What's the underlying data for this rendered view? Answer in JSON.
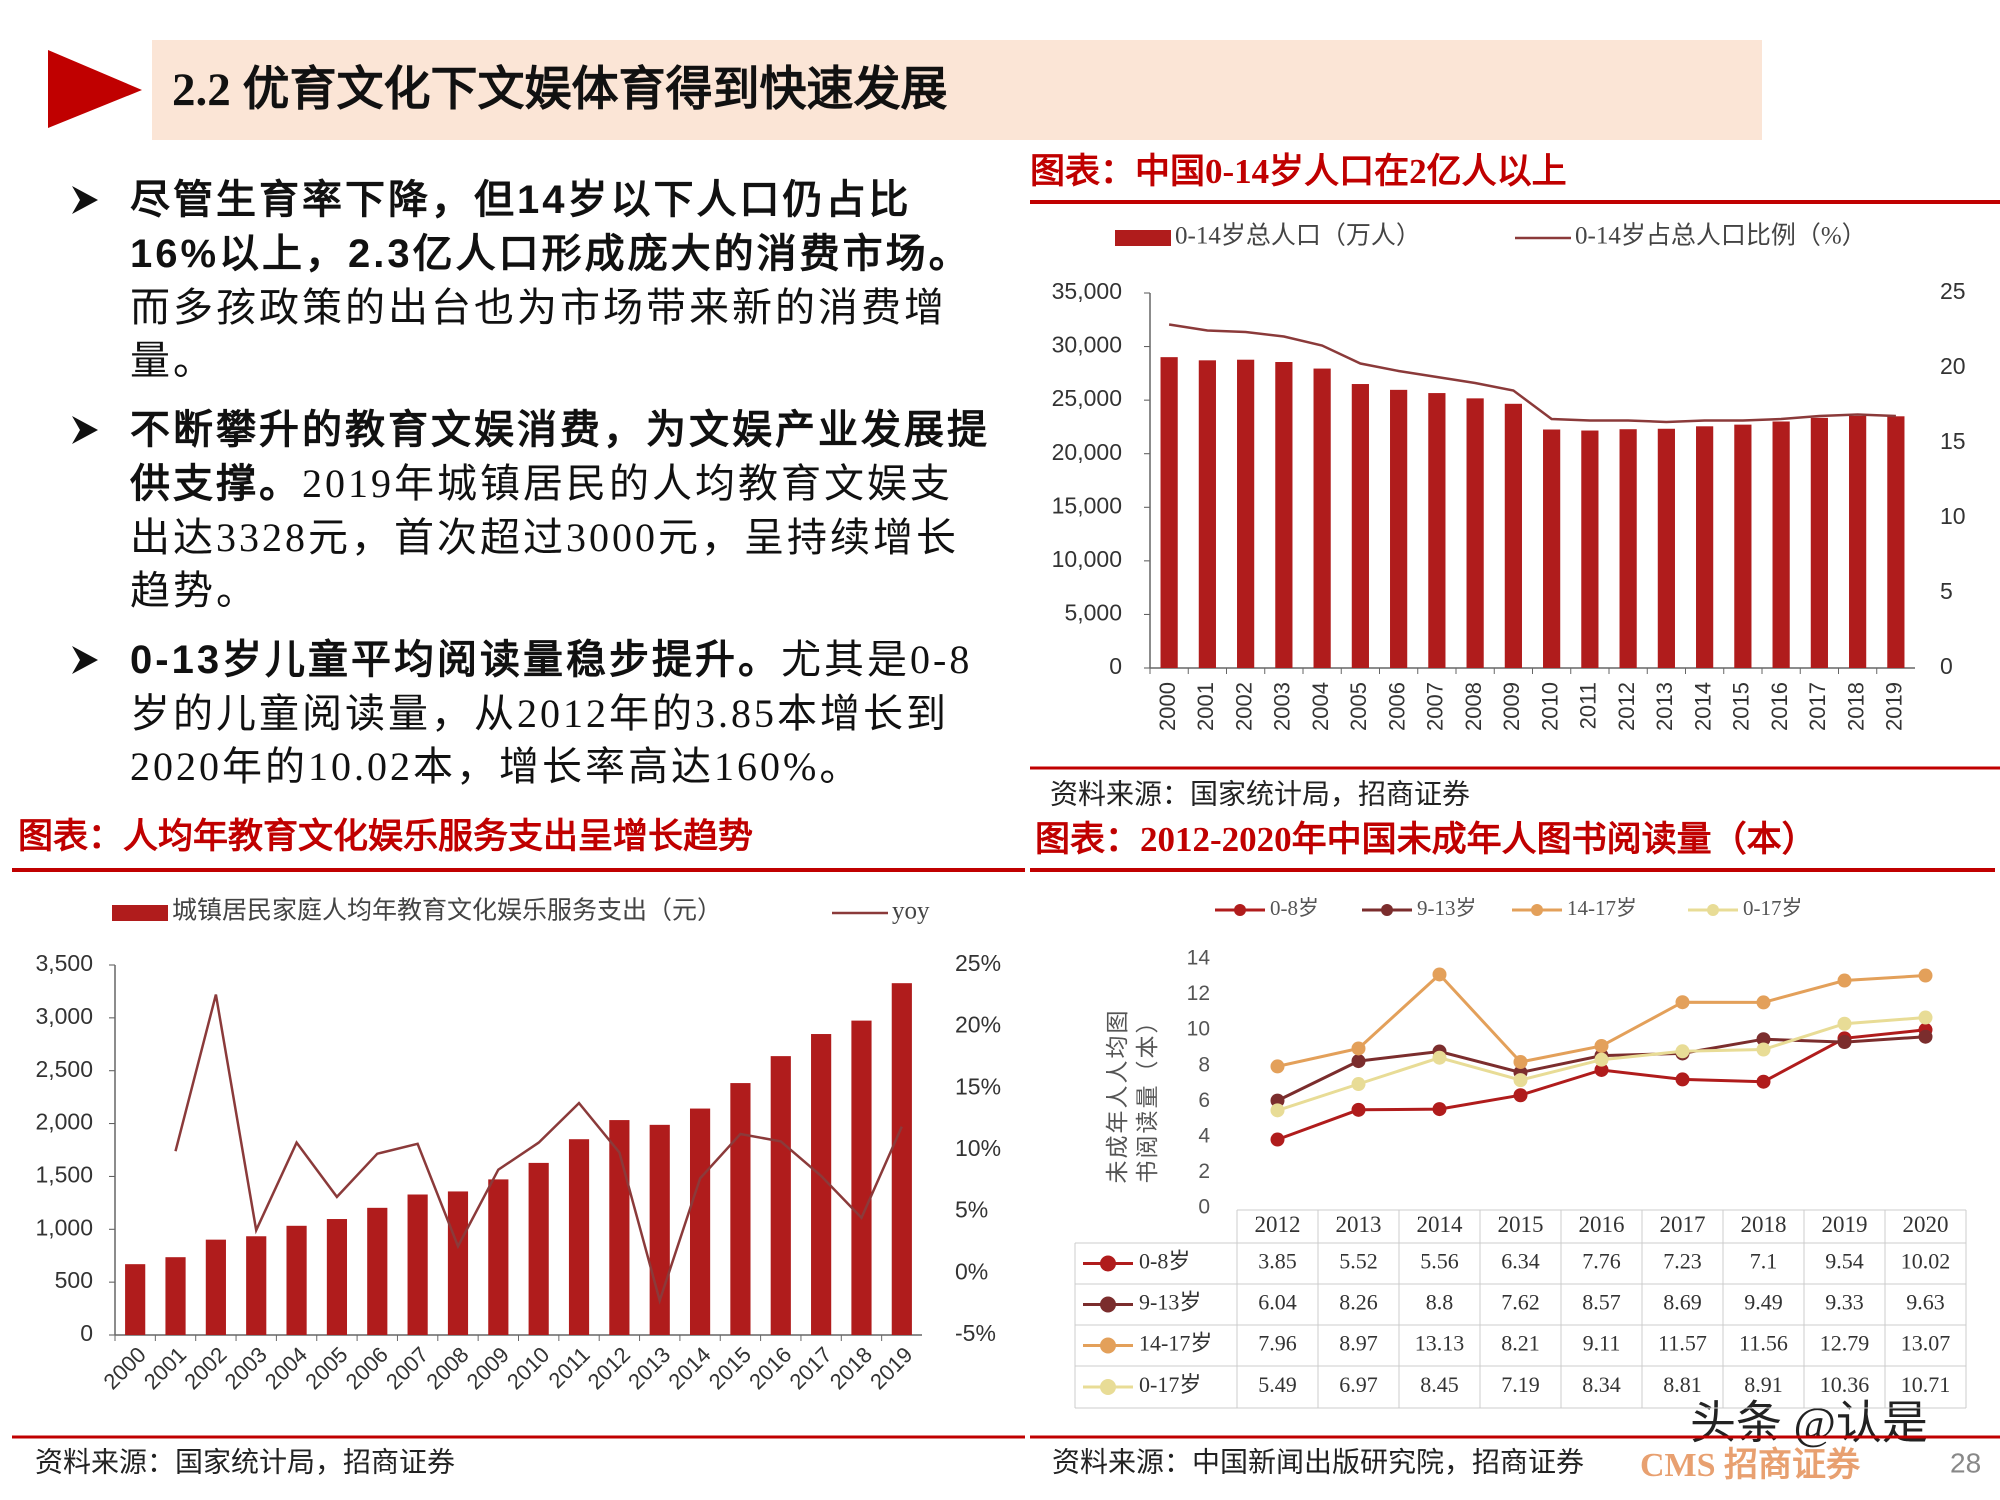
{
  "header": {
    "title": "2.2 优育文化下文娱体育得到快速发展"
  },
  "bullets": [
    {
      "bold": "尽管生育率下降，但14岁以下人口仍占比16%以上，2.3亿人口形成庞大的消费市场。",
      "text": "而多孩政策的出台也为市场带来新的消费增量。"
    },
    {
      "bold": "不断攀升的教育文娱消费，为文娱产业发展提供支撑。",
      "text": "2019年城镇居民的人均教育文娱支出达3328元，首次超过3000元，呈持续增长趋势。"
    },
    {
      "bold": "0-13岁儿童平均阅读量稳步提升。",
      "text": "尤其是0-8岁的儿童阅读量，从2012年的3.85本增长到2020年的10.02本，增长率高达160%。"
    }
  ],
  "chart_data": [
    {
      "type": "combo",
      "title": "图表：中国0-14岁人口在2亿人以上",
      "source": "资料来源：国家统计局，招商证券",
      "categories": [
        "2000",
        "2001",
        "2002",
        "2003",
        "2004",
        "2005",
        "2006",
        "2007",
        "2008",
        "2009",
        "2010",
        "2011",
        "2012",
        "2013",
        "2014",
        "2015",
        "2016",
        "2017",
        "2018",
        "2019"
      ],
      "series": [
        {
          "name": "0-14岁总人口（万人）",
          "color": "#b01c1c",
          "kind": "bar",
          "values": [
            29012,
            28716,
            28774,
            28559,
            27947,
            26504,
            25961,
            25660,
            25166,
            24659,
            22259,
            22164,
            22287,
            22329,
            22558,
            22715,
            23008,
            23348,
            23523,
            23492
          ]
        },
        {
          "name": "0-14岁占总人口比例（%）",
          "color": "#8b3a3a",
          "kind": "line",
          "axis": "y2",
          "values": [
            22.9,
            22.5,
            22.4,
            22.1,
            21.5,
            20.3,
            19.8,
            19.4,
            19.0,
            18.5,
            16.6,
            16.5,
            16.5,
            16.4,
            16.5,
            16.5,
            16.6,
            16.8,
            16.9,
            16.8
          ]
        }
      ],
      "ylim": [
        0,
        35000
      ],
      "yticks": [
        0,
        {
          "value": 5000,
          "label": "5,000"
        },
        {
          "value": 10000,
          "label": "10,000"
        },
        {
          "value": 15000,
          "label": "15,000"
        },
        {
          "value": 20000,
          "label": "20,000"
        },
        {
          "value": 25000,
          "label": "25,000"
        },
        {
          "value": 30000,
          "label": "30,000"
        },
        {
          "value": 35000,
          "label": "35,000"
        }
      ],
      "y2lim": [
        0,
        25
      ],
      "y2ticks": [
        0,
        5,
        10,
        15,
        20,
        25
      ]
    },
    {
      "type": "combo",
      "title": "图表：人均年教育文化娱乐服务支出呈增长趋势",
      "source": "资料来源：国家统计局，招商证券",
      "categories": [
        "2000",
        "2001",
        "2002",
        "2003",
        "2004",
        "2005",
        "2006",
        "2007",
        "2008",
        "2009",
        "2010",
        "2011",
        "2012",
        "2013",
        "2014",
        "2015",
        "2016",
        "2017",
        "2018",
        "2019"
      ],
      "series": [
        {
          "name": "城镇居民家庭人均年教育文化娱乐服务支出（元）",
          "color": "#b01c1c",
          "kind": "bar",
          "values": [
            670,
            736,
            902,
            934,
            1033,
            1097,
            1203,
            1329,
            1358,
            1472,
            1628,
            1852,
            2033,
            1988,
            2142,
            2383,
            2638,
            2847,
            2974,
            3328
          ]
        },
        {
          "name": "yoy",
          "color": "#8b3a3a",
          "kind": "line",
          "axis": "y2",
          "values": [
            null,
            9.9,
            22.6,
            3.5,
            10.6,
            6.2,
            9.7,
            10.5,
            2.2,
            8.4,
            10.6,
            13.8,
            9.8,
            -2.2,
            7.7,
            11.3,
            10.7,
            7.9,
            4.5,
            11.9
          ]
        }
      ],
      "ylim": [
        0,
        3500
      ],
      "yticks": [
        0,
        500,
        {
          "value": 1000,
          "label": "1,000"
        },
        {
          "value": 1500,
          "label": "1,500"
        },
        {
          "value": 2000,
          "label": "2,000"
        },
        {
          "value": 2500,
          "label": "2,500"
        },
        {
          "value": 3000,
          "label": "3,000"
        },
        {
          "value": 3500,
          "label": "3,500"
        }
      ],
      "y2lim": [
        -5,
        25
      ],
      "y2ticks": [
        {
          "value": -5,
          "label": "-5%"
        },
        {
          "value": 0,
          "label": "0%"
        },
        {
          "value": 5,
          "label": "5%"
        },
        {
          "value": 10,
          "label": "10%"
        },
        {
          "value": 15,
          "label": "15%"
        },
        {
          "value": 20,
          "label": "20%"
        },
        {
          "value": 25,
          "label": "25%"
        }
      ]
    },
    {
      "type": "line",
      "title": "图表：2012-2020年中国未成年人图书阅读量（本）",
      "source": "资料来源：中国新闻出版研究院，招商证券",
      "y_label": "未成年人人均图书阅读量（本）",
      "categories": [
        "2012",
        "2013",
        "2014",
        "2015",
        "2016",
        "2017",
        "2018",
        "2019",
        "2020"
      ],
      "series": [
        {
          "name": "0-8岁",
          "color": "#b01c1c",
          "values": [
            3.85,
            5.52,
            5.56,
            6.34,
            7.76,
            7.23,
            7.1,
            9.54,
            10.02
          ]
        },
        {
          "name": "9-13岁",
          "color": "#7b2d2d",
          "values": [
            6.04,
            8.26,
            8.8,
            7.62,
            8.57,
            8.69,
            9.49,
            9.33,
            9.63
          ]
        },
        {
          "name": "14-17岁",
          "color": "#e3a05a",
          "values": [
            7.96,
            8.97,
            13.13,
            8.21,
            9.11,
            11.57,
            11.56,
            12.79,
            13.07
          ]
        },
        {
          "name": "0-17岁",
          "color": "#e8dc96",
          "values": [
            5.49,
            6.97,
            8.45,
            7.19,
            8.34,
            8.81,
            8.91,
            10.36,
            10.71
          ]
        }
      ],
      "ylim": [
        0,
        14
      ],
      "yticks": [
        0,
        2,
        4,
        6,
        8,
        10,
        12,
        14
      ]
    }
  ],
  "footer": {
    "watermark": "头条 @认是",
    "logo": "CMS 招商证券",
    "page": "28"
  }
}
